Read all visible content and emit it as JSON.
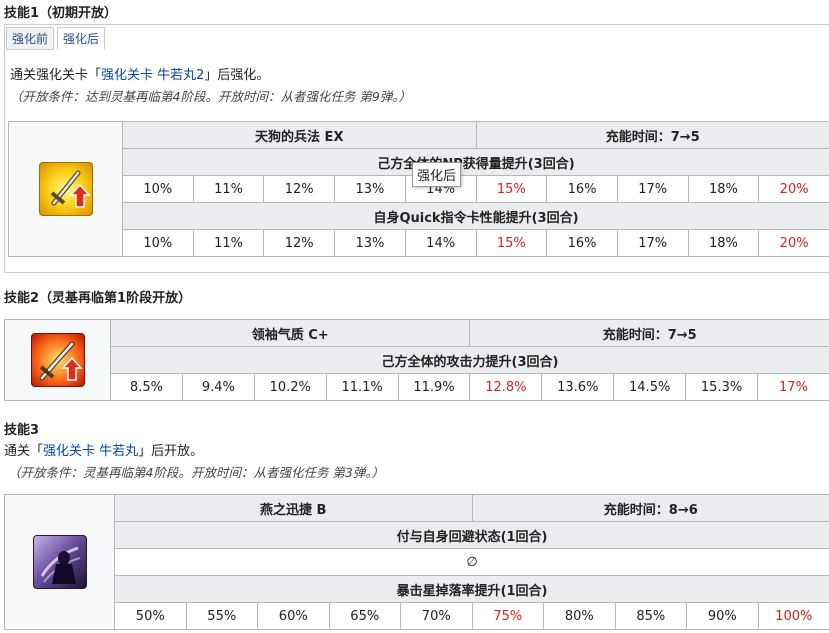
{
  "skill1": {
    "heading": "技能1（初期开放）",
    "tabs": [
      "强化前",
      "强化后"
    ],
    "unlock_prefix": "通关强化关卡「",
    "unlock_link": "强化关卡 牛若丸2",
    "unlock_suffix": "」后强化。",
    "condition": "（开放条件：达到灵基再临第4阶段。开放时间：从者强化任务 第9弹。）",
    "name": "天狗的兵法 EX",
    "charge": "充能时间：7→5",
    "effect1": "己方全体的NP获得量提升(3回合)",
    "values1": [
      "10%",
      "11%",
      "12%",
      "13%",
      "14%",
      "15%",
      "16%",
      "17%",
      "18%",
      "20%"
    ],
    "effect2": "自身Quick指令卡性能提升(3回合)",
    "values2": [
      "10%",
      "11%",
      "12%",
      "13%",
      "14%",
      "15%",
      "16%",
      "17%",
      "18%",
      "20%"
    ],
    "tooltip": "强化后"
  },
  "skill2": {
    "heading": "技能2（灵基再临第1阶段开放）",
    "name": "领袖气质 C+",
    "charge": "充能时间：7→5",
    "effect1": "己方全体的攻击力提升(3回合)",
    "values1": [
      "8.5%",
      "9.4%",
      "10.2%",
      "11.1%",
      "11.9%",
      "12.8%",
      "13.6%",
      "14.5%",
      "15.3%",
      "17%"
    ]
  },
  "skill3": {
    "heading": "技能3",
    "unlock_prefix": "通关「",
    "unlock_link": "强化关卡 牛若丸",
    "unlock_suffix": "」后开放。",
    "condition": "（开放条件：灵基再临第4阶段。开放时间：从者强化任务 第3弹。）",
    "name": "燕之迅捷 B",
    "charge": "充能时间：8→6",
    "effect1": "付与自身回避状态(1回合)",
    "value1": "∅",
    "effect2": "暴击星掉落率提升(1回合)",
    "values2": [
      "50%",
      "55%",
      "60%",
      "65%",
      "70%",
      "75%",
      "80%",
      "85%",
      "90%",
      "100%"
    ]
  },
  "colors": {
    "highlight": "#d62020",
    "header_bg": "#eaecf0",
    "link": "#0645ad"
  },
  "icons": [
    "sword-np-up-icon",
    "sword-attack-up-icon",
    "evade-icon"
  ]
}
